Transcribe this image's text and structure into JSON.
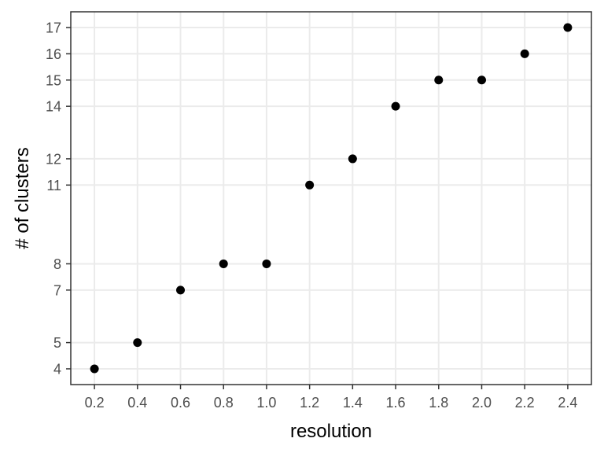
{
  "chart_data": {
    "type": "scatter",
    "xlabel": "resolution",
    "ylabel": "# of clusters",
    "x_ticks": [
      0.2,
      0.4,
      0.6,
      0.8,
      1.0,
      1.2,
      1.4,
      1.6,
      1.8,
      2.0,
      2.2,
      2.4
    ],
    "x_tick_labels": [
      "0.2",
      "0.4",
      "0.6",
      "0.8",
      "1.0",
      "1.2",
      "1.4",
      "1.6",
      "1.8",
      "2.0",
      "2.2",
      "2.4"
    ],
    "y_ticks": [
      4,
      5,
      7,
      8,
      11,
      12,
      14,
      15,
      16,
      17
    ],
    "y_tick_labels": [
      "4",
      "5",
      "7",
      "8",
      "11",
      "12",
      "14",
      "15",
      "16",
      "17"
    ],
    "xlim": [
      0.09,
      2.51
    ],
    "ylim": [
      3.4,
      17.6
    ],
    "grid": true,
    "point_color": "#000000",
    "points": [
      {
        "x": 0.2,
        "y": 4
      },
      {
        "x": 0.4,
        "y": 5
      },
      {
        "x": 0.6,
        "y": 7
      },
      {
        "x": 0.8,
        "y": 8
      },
      {
        "x": 1.0,
        "y": 8
      },
      {
        "x": 1.2,
        "y": 11
      },
      {
        "x": 1.4,
        "y": 12
      },
      {
        "x": 1.6,
        "y": 14
      },
      {
        "x": 1.8,
        "y": 15
      },
      {
        "x": 2.0,
        "y": 15
      },
      {
        "x": 2.2,
        "y": 16
      },
      {
        "x": 2.4,
        "y": 17
      }
    ]
  }
}
